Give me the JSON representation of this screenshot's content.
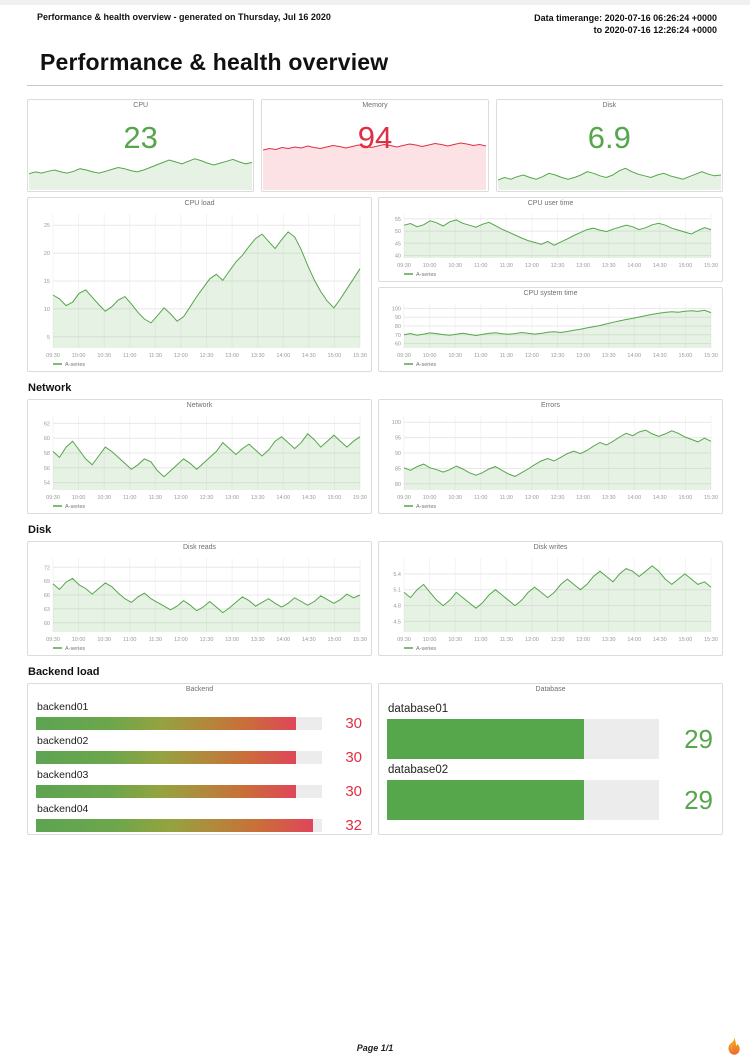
{
  "page": {
    "header_left": "Performance & health overview - generated on Thursday, Jul 16 2020",
    "header_right_line1": "Data timerange: 2020-07-16 06:26:24 +0000",
    "header_right_line2": "to 2020-07-16 12:26:24 +0000",
    "title": "Performance & health overview",
    "section_network": "Network",
    "section_disk": "Disk",
    "section_backend": "Backend load",
    "footer": "Page 1/1"
  },
  "colors": {
    "green": "#56a64b",
    "red": "#e02f44",
    "green_fill": "rgba(115,191,105,0.18)",
    "red_fill": "rgba(242,73,92,0.16)"
  },
  "x_labels": [
    "09:30",
    "10:00",
    "10:30",
    "11:00",
    "11:30",
    "12:00",
    "12:30",
    "13:00",
    "13:30",
    "14:00",
    "14:30",
    "15:00",
    "15:30"
  ],
  "chart_data": [
    {
      "id": "stat-cpu",
      "type": "stat",
      "title": "CPU",
      "value": "23",
      "color": "#56a64b",
      "fill": "rgba(115,191,105,0.18)",
      "spark": {
        "ylim": [
          0,
          40
        ],
        "values": [
          13,
          14.5,
          13.5,
          15,
          16,
          14.5,
          13.5,
          15,
          17,
          16,
          14.5,
          13.5,
          15,
          16.5,
          18,
          17,
          15.5,
          14.5,
          16,
          18,
          20,
          22,
          24,
          22.5,
          21,
          23,
          25,
          23.5,
          21.5,
          20,
          21.5,
          23,
          24.5,
          22.5,
          21,
          22
        ]
      }
    },
    {
      "id": "stat-memory",
      "type": "stat",
      "title": "Memory",
      "value": "94",
      "color": "#e02f44",
      "fill": "rgba(242,73,92,0.16)",
      "spark": {
        "ylim": [
          0,
          100
        ],
        "values": [
          80,
          83,
          81,
          85,
          83,
          86,
          84,
          88,
          85,
          83,
          86,
          89,
          87,
          84,
          87,
          90,
          88,
          85,
          88,
          91,
          89,
          86,
          89,
          92,
          90,
          87,
          90,
          93,
          91,
          88,
          91,
          94,
          92,
          89,
          91,
          88
        ]
      }
    },
    {
      "id": "stat-disk",
      "type": "stat",
      "title": "Disk",
      "value": "6.9",
      "color": "#56a64b",
      "fill": "rgba(115,191,105,0.18)",
      "spark": {
        "ylim": [
          0,
          30
        ],
        "values": [
          6,
          7.5,
          6.5,
          8,
          9,
          7.5,
          6.5,
          8,
          10,
          9,
          7.5,
          6.5,
          7.5,
          9,
          11,
          10,
          8.5,
          7.5,
          9,
          11.5,
          13,
          11,
          9.5,
          8.5,
          7.5,
          9,
          10,
          8.5,
          7.5,
          6.5,
          8,
          9.5,
          11,
          9.5,
          8.5,
          9
        ]
      }
    },
    {
      "id": "cpu-load",
      "type": "line",
      "title": "CPU load",
      "legend": "A-series",
      "color": "#56a64b",
      "fill": "rgba(115,191,105,0.18)",
      "ylim": [
        3,
        27
      ],
      "yticks": [
        5,
        10,
        15,
        20,
        25
      ],
      "values": [
        12.5,
        11.8,
        10.6,
        11.2,
        12.8,
        13.4,
        12.1,
        10.8,
        9.6,
        10.4,
        11.6,
        12.2,
        10.9,
        9.4,
        8.2,
        7.5,
        8.8,
        10.2,
        9.1,
        7.8,
        8.6,
        10.4,
        12.2,
        13.8,
        15.4,
        16.2,
        15.1,
        16.8,
        18.4,
        19.6,
        21.2,
        22.6,
        23.4,
        22.1,
        20.8,
        22.4,
        23.8,
        22.9,
        20.6,
        17.8,
        15.2,
        13.1,
        11.4,
        10.2,
        11.8,
        13.6,
        15.4,
        17.2
      ]
    },
    {
      "id": "cpu-user",
      "type": "line",
      "title": "CPU user time",
      "legend": "A-series",
      "color": "#56a64b",
      "fill": "rgba(115,191,105,0.18)",
      "ylim": [
        39,
        57
      ],
      "yticks": [
        40,
        45,
        50,
        55
      ],
      "values": [
        52.4,
        53.1,
        51.8,
        52.6,
        54.2,
        53.4,
        52.1,
        53.8,
        54.6,
        53.2,
        52.4,
        51.6,
        52.8,
        53.6,
        52.2,
        50.8,
        49.6,
        48.4,
        47.2,
        46.1,
        45.4,
        44.6,
        45.8,
        44.2,
        45.6,
        46.8,
        48.2,
        49.4,
        50.6,
        51.2,
        50.4,
        49.8,
        50.8,
        51.6,
        52.4,
        51.8,
        50.6,
        51.4,
        52.6,
        53.2,
        52.4,
        51.2,
        50.4,
        49.6,
        48.8,
        50.2,
        51.4,
        50.6
      ]
    },
    {
      "id": "cpu-system",
      "type": "line",
      "title": "CPU system time",
      "legend": "A-series",
      "color": "#56a64b",
      "fill": "rgba(115,191,105,0.18)",
      "ylim": [
        55,
        105
      ],
      "yticks": [
        60,
        70,
        80,
        90,
        100
      ],
      "values": [
        70,
        71.5,
        69.5,
        70.8,
        72.2,
        71.4,
        70.2,
        69.4,
        70.6,
        71.8,
        70.4,
        69.2,
        70.4,
        71.6,
        72.4,
        71.2,
        70.6,
        71.4,
        72.6,
        71.8,
        70.8,
        71.6,
        72.8,
        73.4,
        72.6,
        73.8,
        75.2,
        76.4,
        77.8,
        79.2,
        80.6,
        82.4,
        84.2,
        85.8,
        87.4,
        88.6,
        90.2,
        91.8,
        93.2,
        94.6,
        95.4,
        96.2,
        95.6,
        96.8,
        97.4,
        96.6,
        97.8,
        95.2
      ]
    },
    {
      "id": "network",
      "type": "line",
      "title": "Network",
      "legend": "A-series",
      "color": "#56a64b",
      "fill": "rgba(115,191,105,0.18)",
      "ylim": [
        53,
        63
      ],
      "yticks": [
        54,
        56,
        58,
        60,
        62
      ],
      "values": [
        58.2,
        57.4,
        58.8,
        59.6,
        58.4,
        57.2,
        56.4,
        57.6,
        58.8,
        58.2,
        57.4,
        56.6,
        55.8,
        56.4,
        57.2,
        56.8,
        55.6,
        54.8,
        55.6,
        56.4,
        57.2,
        56.6,
        55.8,
        56.6,
        57.4,
        58.2,
        59.4,
        58.6,
        57.8,
        58.6,
        59.2,
        58.4,
        57.6,
        58.4,
        59.6,
        60.2,
        59.4,
        58.6,
        59.4,
        60.6,
        59.8,
        58.8,
        59.6,
        60.4,
        59.6,
        58.8,
        59.6,
        60.2
      ]
    },
    {
      "id": "errors",
      "type": "line",
      "title": "Errors",
      "legend": "A-series",
      "color": "#56a64b",
      "fill": "rgba(115,191,105,0.18)",
      "ylim": [
        78,
        102
      ],
      "yticks": [
        80,
        85,
        90,
        95,
        100
      ],
      "values": [
        85.2,
        84.4,
        85.6,
        86.4,
        85.2,
        84.6,
        83.8,
        84.6,
        85.8,
        84.8,
        83.6,
        82.8,
        83.6,
        84.8,
        85.6,
        84.4,
        83.2,
        82.4,
        83.6,
        84.8,
        86.2,
        87.4,
        88.2,
        87.4,
        88.6,
        89.8,
        90.6,
        89.8,
        90.8,
        92.2,
        93.4,
        92.6,
        93.8,
        95.2,
        96.4,
        95.6,
        96.8,
        97.4,
        96.2,
        95.4,
        96.2,
        97.2,
        96.4,
        95.2,
        94.4,
        93.6,
        94.8,
        93.8
      ]
    },
    {
      "id": "disk-reads",
      "type": "line",
      "title": "Disk reads",
      "legend": "A-series",
      "color": "#56a64b",
      "fill": "rgba(115,191,105,0.18)",
      "ylim": [
        58,
        74
      ],
      "yticks": [
        60,
        63,
        66,
        69,
        72
      ],
      "values": [
        68.4,
        67.2,
        68.8,
        69.6,
        68.2,
        67.4,
        66.2,
        67.4,
        68.6,
        67.8,
        66.4,
        65.2,
        64.4,
        65.6,
        66.4,
        65.2,
        64.4,
        63.6,
        62.8,
        63.6,
        64.8,
        63.8,
        62.6,
        63.4,
        64.6,
        63.4,
        62.2,
        63.2,
        64.4,
        65.6,
        64.8,
        63.6,
        64.4,
        65.2,
        64.2,
        63.4,
        64.2,
        65.4,
        64.6,
        63.8,
        64.6,
        65.8,
        65.0,
        64.2,
        65.0,
        66.2,
        65.4,
        66.0
      ]
    },
    {
      "id": "disk-writes",
      "type": "line",
      "title": "Disk writes",
      "legend": "A-series",
      "color": "#56a64b",
      "fill": "rgba(115,191,105,0.18)",
      "ylim": [
        4.3,
        5.7
      ],
      "yticks": [
        4.5,
        4.8,
        5.1,
        5.4
      ],
      "values": [
        5.05,
        4.95,
        5.1,
        5.2,
        5.05,
        4.9,
        4.8,
        4.9,
        5.05,
        4.95,
        4.85,
        4.75,
        4.85,
        5.0,
        5.1,
        5.0,
        4.9,
        4.8,
        4.9,
        5.05,
        5.15,
        5.05,
        4.95,
        5.05,
        5.2,
        5.3,
        5.2,
        5.1,
        5.2,
        5.35,
        5.45,
        5.35,
        5.25,
        5.4,
        5.5,
        5.45,
        5.35,
        5.45,
        5.55,
        5.45,
        5.3,
        5.2,
        5.3,
        5.4,
        5.3,
        5.2,
        5.25,
        5.15
      ]
    },
    {
      "id": "backend",
      "type": "bargauge",
      "title": "Backend",
      "max": 33,
      "value_color": "#e02f44",
      "gradient_css": "linear-gradient(90deg,#5da453 0%,#6ca64c 28%,#94a33f 48%,#b08a3c 64%,#c96f38 80%,#e0455a 100%)",
      "rows": [
        {
          "label": "backend01",
          "value": 30
        },
        {
          "label": "backend02",
          "value": 30
        },
        {
          "label": "backend03",
          "value": 30
        },
        {
          "label": "backend04",
          "value": 32
        }
      ]
    },
    {
      "id": "database",
      "type": "bargauge",
      "title": "Database",
      "max": 40,
      "value_color": "#56a64b",
      "bar_color": "#56a64b",
      "size": "large",
      "rows": [
        {
          "label": "database01",
          "value": 29
        },
        {
          "label": "database02",
          "value": 29
        }
      ]
    }
  ]
}
